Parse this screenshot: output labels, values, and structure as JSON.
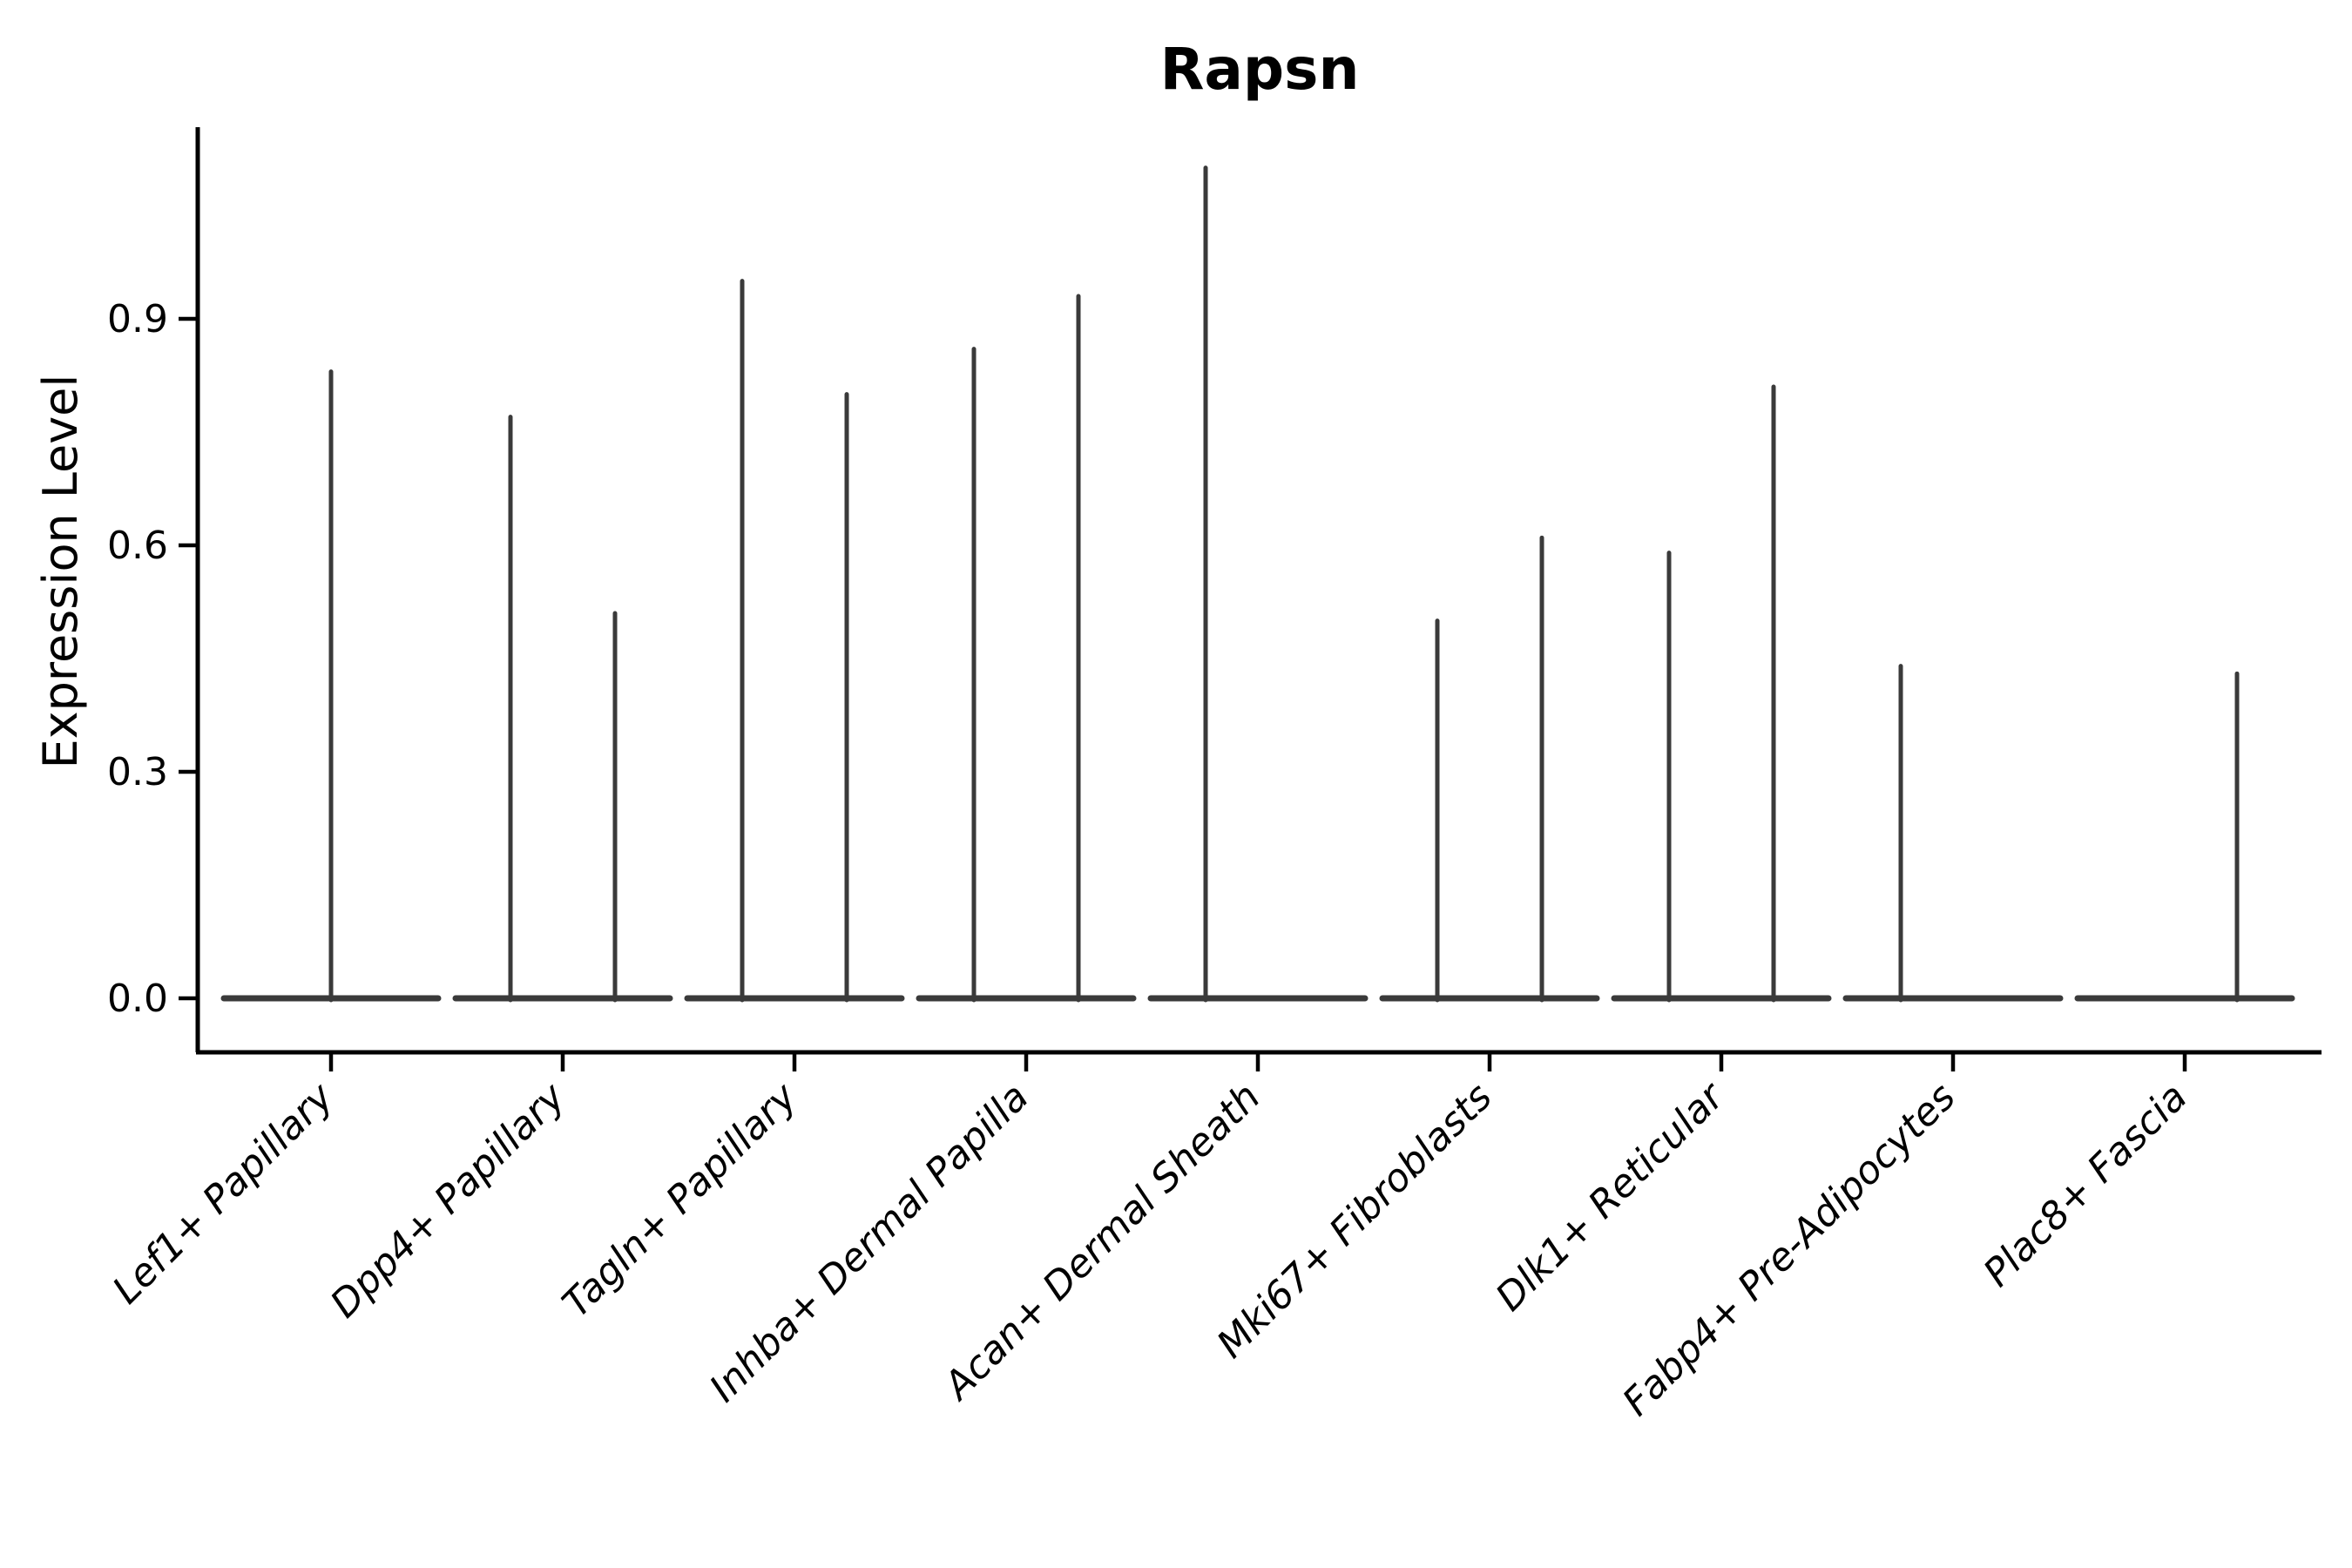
{
  "chart_data": {
    "type": "violin",
    "title": "Rapsn",
    "ylabel": "Expression Level",
    "xlabel": "",
    "ytick_labels": [
      "0.0",
      "0.3",
      "0.6",
      "0.9"
    ],
    "ytick_values": [
      0.0,
      0.3,
      0.6,
      0.9
    ],
    "ylim": [
      0.0,
      1.16
    ],
    "grid": false,
    "legend_position": "none",
    "violin_color": "#3a3a3a",
    "axis_color": "#000000",
    "baseline_value": 0.0,
    "categories": [
      "Lef1+ Papillary",
      "Dpp4+ Papillary",
      "Tagln+ Papillary",
      "Inhba+ Dermal Papilla",
      "Acan+ Dermal Sheath",
      "Mki67+ Fibroblasts",
      "Dlk1+ Reticular",
      "Fabp4+ Pre-Adipocytes",
      "Plac8+ Fascia"
    ],
    "violins": [
      {
        "category": "Lef1+ Papillary",
        "spikes": [
          {
            "side": "center",
            "max": 0.83
          }
        ]
      },
      {
        "category": "Dpp4+ Papillary",
        "spikes": [
          {
            "side": "left",
            "max": 0.77
          },
          {
            "side": "right",
            "max": 0.51
          }
        ]
      },
      {
        "category": "Tagln+ Papillary",
        "spikes": [
          {
            "side": "left",
            "max": 0.95
          },
          {
            "side": "right",
            "max": 0.8
          }
        ]
      },
      {
        "category": "Inhba+ Dermal Papilla",
        "spikes": [
          {
            "side": "left",
            "max": 0.86
          },
          {
            "side": "right",
            "max": 0.93
          }
        ]
      },
      {
        "category": "Acan+ Dermal Sheath",
        "spikes": [
          {
            "side": "left",
            "max": 1.1
          },
          {
            "side": "right",
            "max": 0.0
          }
        ]
      },
      {
        "category": "Mki67+ Fibroblasts",
        "spikes": [
          {
            "side": "left",
            "max": 0.5
          },
          {
            "side": "right",
            "max": 0.61
          }
        ]
      },
      {
        "category": "Dlk1+ Reticular",
        "spikes": [
          {
            "side": "left",
            "max": 0.59
          },
          {
            "side": "right",
            "max": 0.81
          }
        ]
      },
      {
        "category": "Fabp4+ Pre-Adipocytes",
        "spikes": [
          {
            "side": "left",
            "max": 0.44
          },
          {
            "side": "right",
            "max": 0.0
          }
        ]
      },
      {
        "category": "Plac8+ Fascia",
        "spikes": [
          {
            "side": "left",
            "max": 0.0
          },
          {
            "side": "right",
            "max": 0.43
          }
        ]
      }
    ]
  }
}
